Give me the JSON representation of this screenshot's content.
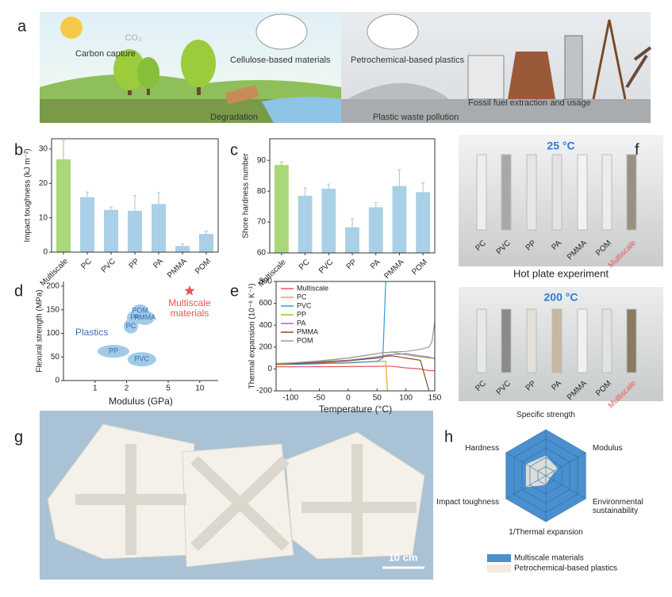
{
  "panel_labels": [
    "a",
    "b",
    "c",
    "d",
    "e",
    "f",
    "g",
    "h"
  ],
  "illustration_a": {
    "labels": [
      "Carbon capture",
      "CO₂",
      "Cellulose-based materials",
      "Petrochemical-based plastics",
      "Fossil fuel extraction and usage",
      "Degradation",
      "Plastic waste pollution"
    ]
  },
  "chart_data": [
    {
      "type": "bar",
      "ylabel": "Impact toughness (kJ m⁻²)",
      "categories": [
        "Multiscale",
        "PC",
        "PVC",
        "PP",
        "PA",
        "PMMA",
        "POM"
      ],
      "values": [
        27,
        16,
        12.3,
        12,
        14,
        1.8,
        5.3
      ],
      "errors": [
        5.5,
        1.5,
        0.8,
        4.5,
        3.3,
        0.6,
        0.8
      ],
      "colors": [
        "#a8d87a",
        "#a9d0e6",
        "#a9d0e6",
        "#a9d0e6",
        "#a9d0e6",
        "#a9d0e6",
        "#a9d0e6"
      ],
      "ylim": [
        0,
        33
      ],
      "yticks": [
        0,
        10,
        20,
        30
      ]
    },
    {
      "type": "bar",
      "ylabel": "Shore hardness number",
      "categories": [
        "Multiscale",
        "PC",
        "PVC",
        "PP",
        "PA",
        "PMMA",
        "POM"
      ],
      "values": [
        88.5,
        78.5,
        80.8,
        68.3,
        74.8,
        81.7,
        79.7
      ],
      "errors": [
        1,
        2.5,
        1.5,
        2.8,
        1.5,
        5.3,
        3
      ],
      "colors": [
        "#a8d87a",
        "#a9d0e6",
        "#a9d0e6",
        "#a9d0e6",
        "#a9d0e6",
        "#a9d0e6",
        "#a9d0e6"
      ],
      "ylim": [
        60,
        97
      ],
      "yticks": [
        60,
        70,
        80,
        90
      ]
    },
    {
      "type": "scatter",
      "xlabel": "Modulus (GPa)",
      "ylabel": "Flexural strength (MPa)",
      "xscale": "log",
      "xlim": [
        0.5,
        15
      ],
      "xticks": [
        1,
        2,
        5,
        10
      ],
      "ylim": [
        0,
        210
      ],
      "yticks": [
        0,
        50,
        100,
        150,
        200
      ],
      "series": [
        {
          "name": "Plastics",
          "color": "#9fcbe6",
          "text_color": "#3b6bb5",
          "labels": [
            "PP",
            "PVC",
            "PC",
            "PA",
            "PMMA",
            "POM"
          ],
          "x": [
            1.5,
            2.8,
            2.2,
            2.4,
            3.0,
            2.7
          ],
          "values": [
            62,
            45,
            115,
            133,
            133,
            148
          ]
        },
        {
          "name": "Multiscale materials",
          "color": "#e8545a",
          "x": [
            8
          ],
          "values": [
            190
          ]
        }
      ]
    },
    {
      "type": "line",
      "xlabel": "Temperature (°C)",
      "ylabel": "Thermal expansion (10⁻⁶ K⁻¹)",
      "xlim": [
        -125,
        150
      ],
      "xticks": [
        -100,
        -50,
        0,
        50,
        100,
        150
      ],
      "ylim": [
        -200,
        800
      ],
      "yticks": [
        -200,
        0,
        200,
        400,
        600,
        800
      ],
      "x": [
        -125,
        -100,
        -50,
        0,
        50,
        60,
        65,
        68,
        75,
        100,
        125,
        140,
        145,
        150
      ],
      "series": [
        {
          "name": "Multiscale",
          "color": "#e8545a",
          "values": [
            20,
            20,
            21,
            22,
            24,
            25,
            25,
            25,
            25,
            10,
            0,
            -15,
            -15,
            -15
          ]
        },
        {
          "name": "PC",
          "color": "#f0a030",
          "values": [
            45,
            47,
            52,
            60,
            68,
            70,
            70,
            -200,
            null,
            null,
            null,
            null,
            null,
            null
          ]
        },
        {
          "name": "PVC",
          "color": "#2e9bd6",
          "values": [
            40,
            42,
            48,
            55,
            70,
            100,
            800,
            null,
            null,
            null,
            null,
            null,
            null,
            null
          ]
        },
        {
          "name": "PP",
          "color": "#8cc43c",
          "values": [
            40,
            45,
            70,
            100,
            140,
            150,
            150,
            150,
            155,
            130,
            110,
            100,
            100,
            100
          ]
        },
        {
          "name": "PA",
          "color": "#a070c0",
          "values": [
            50,
            55,
            65,
            80,
            110,
            120,
            125,
            128,
            130,
            140,
            120,
            110,
            100,
            95
          ]
        },
        {
          "name": "PMMA",
          "color": "#8a4a2a",
          "values": [
            45,
            48,
            58,
            75,
            100,
            110,
            115,
            118,
            120,
            100,
            80,
            -200,
            null,
            null
          ]
        },
        {
          "name": "POM",
          "color": "#9a9a9a",
          "values": [
            50,
            55,
            75,
            100,
            140,
            150,
            150,
            150,
            155,
            160,
            180,
            200,
            250,
            430
          ]
        }
      ],
      "legend": "upper left"
    },
    {
      "type": "radar",
      "categories": [
        "Specific strength",
        "Modulus",
        "Environmental sustainability",
        "1/Thermal expansion",
        "Impact toughness",
        "Hardness"
      ],
      "rlim": [
        0,
        5
      ],
      "rticks": [
        1,
        2,
        3,
        4,
        5
      ],
      "series": [
        {
          "name": "Multiscale materials",
          "color": "#4a90cf",
          "values": [
            5,
            5,
            5,
            5,
            5,
            5
          ]
        },
        {
          "name": "Petrochemical-based plastics",
          "color": "#f3ebdc",
          "values": [
            2.2,
            1.5,
            0.5,
            1,
            2.5,
            2.5
          ]
        }
      ]
    }
  ],
  "photos_f": {
    "top_title": "25 °C",
    "caption": "Hot plate experiment",
    "bottom_title": "200 °C",
    "samples": [
      "PC",
      "PVC",
      "PP",
      "PA",
      "PMMA",
      "POM",
      "Multiscale"
    ]
  },
  "photo_g": {
    "scale_bar": "10 cm"
  }
}
